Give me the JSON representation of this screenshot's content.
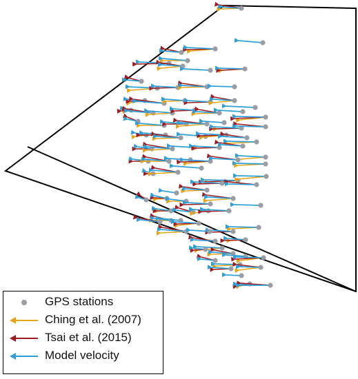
{
  "colors": {
    "gps": "#9a9da3",
    "ching": "#e8a415",
    "tsai": "#a01a1f",
    "model": "#2f9fd8",
    "outline": "#000000"
  },
  "legend": {
    "items": [
      {
        "key": "gps",
        "label": "GPS stations",
        "symbol": "dot-icon"
      },
      {
        "key": "ching",
        "label": "Ching et al. (2007)",
        "symbol": "arrow-icon"
      },
      {
        "key": "tsai",
        "label": "Tsai et al. (2015)",
        "symbol": "arrow-icon"
      },
      {
        "key": "model",
        "label": "Model velocity",
        "symbol": "arrow-icon"
      }
    ]
  }
}
